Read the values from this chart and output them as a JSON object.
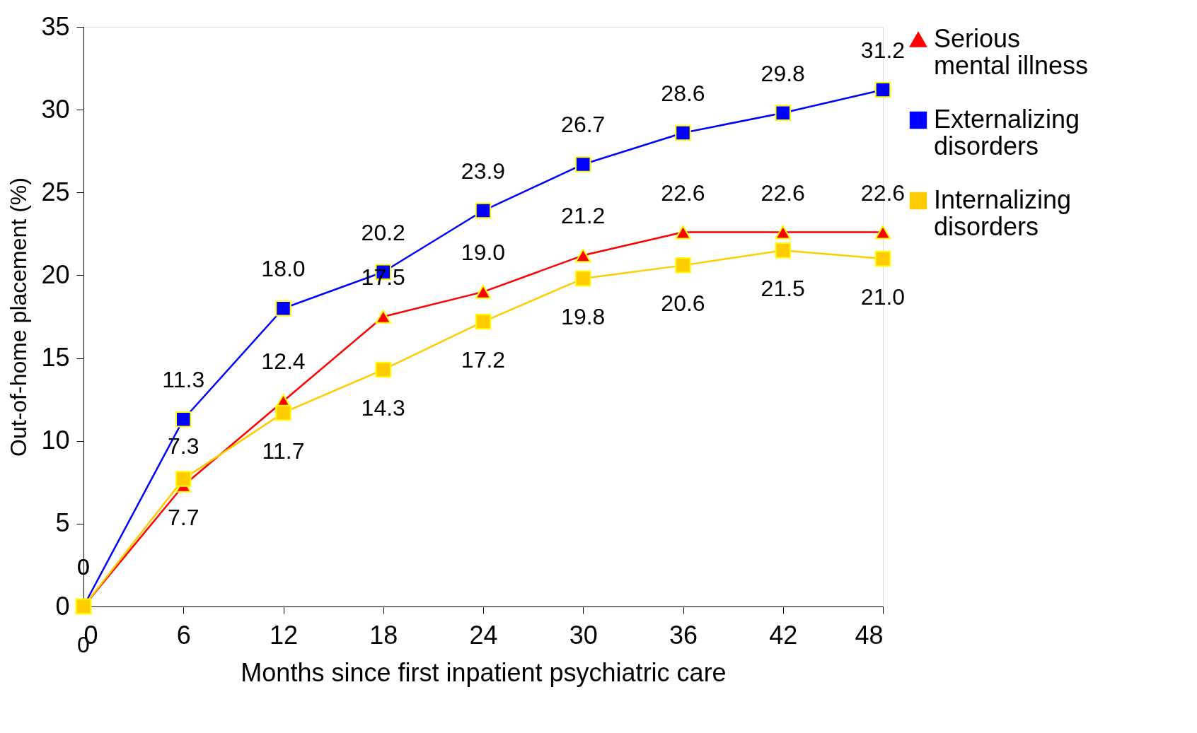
{
  "chart_data": {
    "type": "line",
    "xlabel": "Months since first inpatient psychiatric care",
    "ylabel": "Out-of-home placement (%)",
    "x": [
      0,
      6,
      12,
      18,
      24,
      30,
      36,
      42,
      48
    ],
    "series": [
      {
        "name": "Serious mental illness",
        "color": "#ff0000",
        "marker": "triangle",
        "values": [
          0,
          7.3,
          12.4,
          17.5,
          19.0,
          21.2,
          22.6,
          22.6,
          22.6
        ],
        "value_labels": [
          "0",
          "7.3",
          "12.4",
          "17.5",
          "19.0",
          "21.2",
          "22.6",
          "22.6",
          "22.6"
        ]
      },
      {
        "name": "Externalizing disorders",
        "color": "#0000ff",
        "marker": "square",
        "values": [
          0,
          11.3,
          18.0,
          20.2,
          23.9,
          26.7,
          28.6,
          29.8,
          31.2
        ],
        "value_labels": [
          "0",
          "11.3",
          "18.0",
          "20.2",
          "23.9",
          "26.7",
          "28.6",
          "29.8",
          "31.2"
        ]
      },
      {
        "name": "Internalizing disorders",
        "color": "#ffcc00",
        "marker": "square",
        "values": [
          0,
          7.7,
          11.7,
          14.3,
          17.2,
          19.8,
          20.6,
          21.5,
          21.0
        ],
        "value_labels": [
          "0",
          "7.7",
          "11.7",
          "14.3",
          "17.2",
          "19.8",
          "20.6",
          "21.5",
          "21.0"
        ]
      }
    ],
    "xlim": [
      0,
      48
    ],
    "xticks": [
      0,
      6,
      12,
      18,
      24,
      30,
      36,
      42,
      48
    ],
    "ylim": [
      0,
      35
    ],
    "yticks": [
      0,
      5,
      10,
      15,
      20,
      25,
      30,
      35
    ],
    "grid": false,
    "legend": "right",
    "line_style": "solid"
  }
}
